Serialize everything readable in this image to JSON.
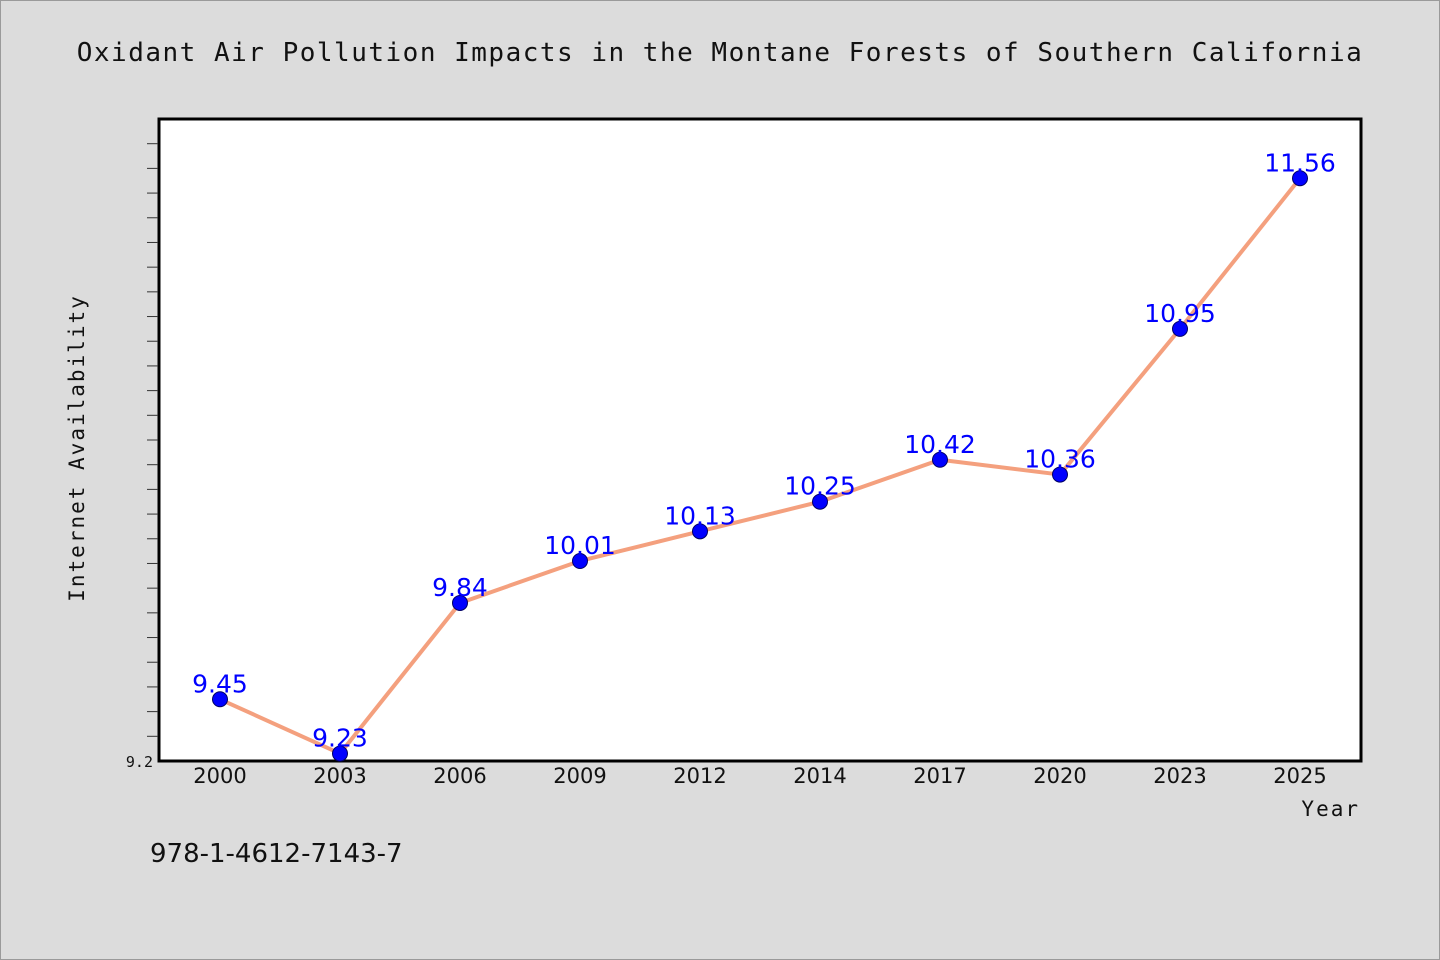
{
  "chart_data": {
    "type": "line",
    "title": "Oxidant Air Pollution Impacts in the Montane Forests of Southern California",
    "xlabel": "Year",
    "ylabel": "Internet Availability",
    "categories": [
      "2000",
      "2003",
      "2006",
      "2009",
      "2012",
      "2014",
      "2017",
      "2020",
      "2023",
      "2025"
    ],
    "series": [
      {
        "values": [
          9.45,
          9.23,
          9.84,
          10.01,
          10.13,
          10.25,
          10.42,
          10.36,
          10.95,
          11.56
        ],
        "value_labels": [
          "9.45",
          "9.23",
          "9.84",
          "10.01",
          "10.13",
          "10.25",
          "10.42",
          "10.36",
          "10.95",
          "11.56"
        ],
        "line_color": "#f4a07e",
        "marker_color": "#0000ff"
      }
    ],
    "ylim": [
      9.2,
      11.8
    ],
    "y_tick_labels": [
      "9.2"
    ],
    "y_minor_tick_step": 0.1,
    "grid": false,
    "legend": "none"
  },
  "footer": {
    "isbn": "978-1-4612-7143-7"
  },
  "colors": {
    "background": "#dcdcdc",
    "plot_area": "#ffffff",
    "label": "#0000ff"
  }
}
